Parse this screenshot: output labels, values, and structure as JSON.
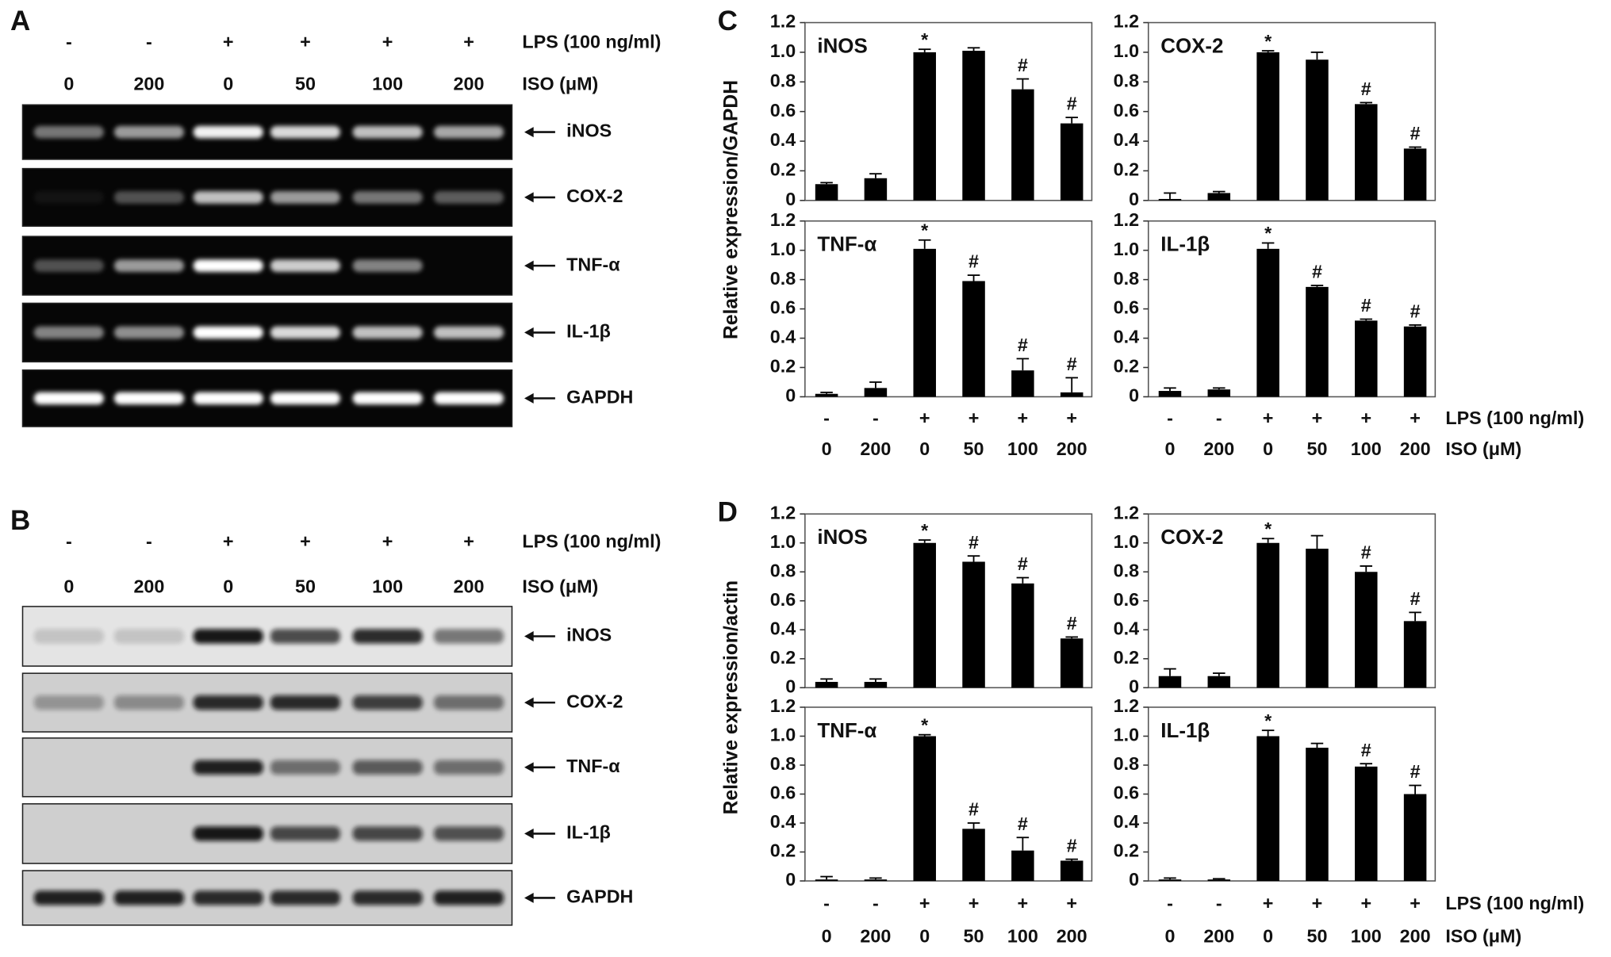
{
  "panel_a": {
    "label": "A",
    "lps": [
      "-",
      "-",
      "+",
      "+",
      "+",
      "+"
    ],
    "iso": [
      "0",
      "200",
      "0",
      "50",
      "100",
      "200"
    ],
    "lps_label": "LPS (100 ng/ml)",
    "iso_label": "ISO (μM)",
    "bands": [
      "iNOS",
      "COX-2",
      "TNF-α",
      "IL-1β",
      "GAPDH"
    ]
  },
  "panel_b": {
    "label": "B",
    "lps": [
      "-",
      "-",
      "+",
      "+",
      "+",
      "+"
    ],
    "iso": [
      "0",
      "200",
      "0",
      "50",
      "100",
      "200"
    ],
    "lps_label": "LPS (100 ng/ml)",
    "iso_label": "ISO (μM)",
    "bands": [
      "iNOS",
      "COX-2",
      "TNF-α",
      "IL-1β",
      "GAPDH"
    ]
  },
  "chart_data": [
    {
      "type": "bar",
      "label": "C",
      "ylabel": "Relative expression/GAPDH",
      "color": "#000000",
      "ylim": [
        0,
        1.2
      ],
      "yticks": [
        0,
        0.2,
        0.4,
        0.6,
        0.8,
        {
          "value": 1,
          "label": "1.0"
        },
        1.2
      ],
      "lps": [
        "-",
        "-",
        "+",
        "+",
        "+",
        "+"
      ],
      "categories": [
        "0",
        "200",
        "0",
        "50",
        "100",
        "200"
      ],
      "panels": [
        {
          "title": "iNOS",
          "values": [
            0.11,
            0.15,
            1.0,
            1.01,
            0.75,
            0.52
          ],
          "errors": [
            0.01,
            0.03,
            0.02,
            0.02,
            0.07,
            0.04
          ],
          "annotations": [
            null,
            null,
            "*",
            null,
            "#",
            "#"
          ]
        },
        {
          "title": "TNF-α",
          "values": [
            0.02,
            0.06,
            1.01,
            0.79,
            0.18,
            0.03
          ],
          "errors": [
            0.01,
            0.04,
            0.06,
            0.04,
            0.08,
            0.1
          ],
          "annotations": [
            null,
            null,
            "*",
            "#",
            "#",
            "#"
          ]
        }
      ]
    },
    {
      "type": "bar",
      "color": "#000000",
      "ylim": [
        0,
        1.2
      ],
      "yticks": [
        0,
        0.2,
        0.4,
        0.6,
        0.8,
        {
          "value": 1,
          "label": "1.0"
        },
        1.2
      ],
      "lps": [
        "-",
        "-",
        "+",
        "+",
        "+",
        "+"
      ],
      "categories": [
        "0",
        "200",
        "0",
        "50",
        "100",
        "200"
      ],
      "lps_label": "LPS (100 ng/ml)",
      "iso_label": "ISO (μM)",
      "panels": [
        {
          "title": "COX-2",
          "values": [
            0.01,
            0.05,
            1.0,
            0.95,
            0.65,
            0.35
          ],
          "errors": [
            0.04,
            0.01,
            0.01,
            0.05,
            0.01,
            0.01
          ],
          "annotations": [
            null,
            null,
            "*",
            null,
            "#",
            "#"
          ]
        },
        {
          "title": "IL-1β",
          "values": [
            0.04,
            0.05,
            1.01,
            0.75,
            0.52,
            0.48
          ],
          "errors": [
            0.02,
            0.01,
            0.04,
            0.01,
            0.01,
            0.01
          ],
          "annotations": [
            null,
            null,
            "*",
            "#",
            "#",
            "#"
          ]
        }
      ]
    },
    {
      "type": "bar",
      "label": "D",
      "ylabel": "Relative expression/actin",
      "color": "#000000",
      "ylim": [
        0,
        1.2
      ],
      "yticks": [
        0,
        0.2,
        0.4,
        0.6,
        0.8,
        {
          "value": 1,
          "label": "1.0"
        },
        1.2
      ],
      "lps": [
        "-",
        "-",
        "+",
        "+",
        "+",
        "+"
      ],
      "categories": [
        "0",
        "200",
        "0",
        "50",
        "100",
        "200"
      ],
      "panels": [
        {
          "title": "iNOS",
          "values": [
            0.04,
            0.04,
            1.0,
            0.87,
            0.72,
            0.34
          ],
          "errors": [
            0.02,
            0.02,
            0.02,
            0.04,
            0.04,
            0.01
          ],
          "annotations": [
            null,
            null,
            "*",
            "#",
            "#",
            "#"
          ]
        },
        {
          "title": "TNF-α",
          "values": [
            0.01,
            0.01,
            1.0,
            0.36,
            0.21,
            0.14
          ],
          "errors": [
            0.02,
            0.01,
            0.01,
            0.04,
            0.09,
            0.01
          ],
          "annotations": [
            null,
            null,
            "*",
            "#",
            "#",
            "#"
          ]
        }
      ]
    },
    {
      "type": "bar",
      "color": "#000000",
      "ylim": [
        0,
        1.2
      ],
      "yticks": [
        0,
        0.2,
        0.4,
        0.6,
        0.8,
        {
          "value": 1,
          "label": "1.0"
        },
        1.2
      ],
      "lps": [
        "-",
        "-",
        "+",
        "+",
        "+",
        "+"
      ],
      "categories": [
        "0",
        "200",
        "0",
        "50",
        "100",
        "200"
      ],
      "lps_label": "LPS (100 ng/ml)",
      "iso_label": "ISO (μM)",
      "panels": [
        {
          "title": "COX-2",
          "values": [
            0.08,
            0.08,
            1.0,
            0.96,
            0.8,
            0.46
          ],
          "errors": [
            0.05,
            0.02,
            0.03,
            0.09,
            0.04,
            0.06
          ],
          "annotations": [
            null,
            null,
            "*",
            null,
            "#",
            "#"
          ]
        },
        {
          "title": "IL-1β",
          "values": [
            0.01,
            0.01,
            1.0,
            0.92,
            0.79,
            0.6
          ],
          "errors": [
            0.01,
            0.005,
            0.04,
            0.03,
            0.02,
            0.06
          ],
          "annotations": [
            null,
            null,
            "*",
            null,
            "#",
            "#"
          ]
        }
      ]
    }
  ]
}
